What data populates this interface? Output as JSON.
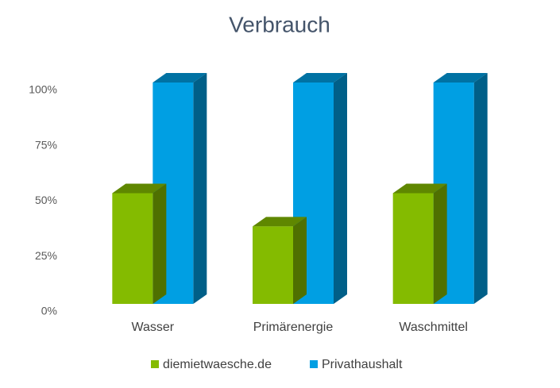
{
  "chart_data": {
    "type": "bar3d",
    "title": "Verbrauch",
    "categories": [
      "Wasser",
      "Primärenergie",
      "Waschmittel"
    ],
    "series": [
      {
        "name": "diemietwaesche.de",
        "color": "#84bb00",
        "values": [
          50,
          35,
          50
        ]
      },
      {
        "name": "Privathaushalt",
        "color": "#009fe3",
        "values": [
          100,
          100,
          100
        ]
      }
    ],
    "ylim": [
      0,
      100
    ],
    "yticks": [
      {
        "value": 0,
        "label": "0%"
      },
      {
        "value": 25,
        "label": "25%"
      },
      {
        "value": 50,
        "label": "50%"
      },
      {
        "value": 75,
        "label": "75%"
      },
      {
        "value": 100,
        "label": "100%"
      }
    ],
    "legend": "bottom"
  }
}
